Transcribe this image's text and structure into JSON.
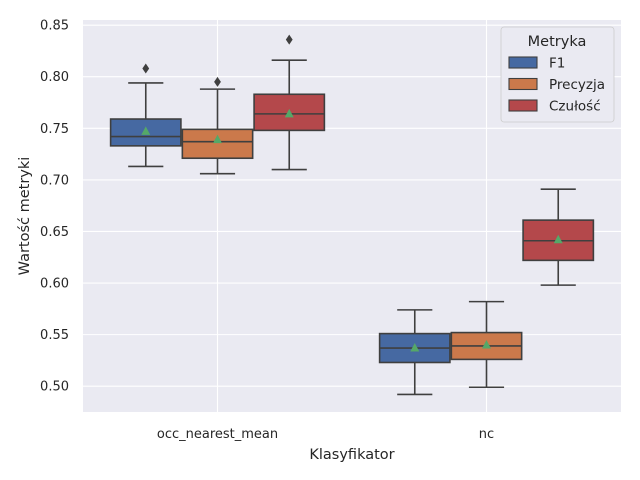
{
  "chart_data": {
    "type": "box",
    "xlabel": "Klasyfikator",
    "ylabel": "Wartość metryki",
    "ylim": [
      0.475,
      0.855
    ],
    "yticks": [
      "0.50",
      "0.55",
      "0.60",
      "0.65",
      "0.70",
      "0.75",
      "0.80",
      "0.85"
    ],
    "grid": true,
    "legend": {
      "title": "Metryka",
      "placement": "top-right"
    },
    "categories": [
      "occ_nearest_mean",
      "nc"
    ],
    "series": [
      {
        "name": "F1",
        "color": "#4c72b0",
        "boxes": [
          {
            "whisker_low": 0.713,
            "q1": 0.733,
            "median": 0.742,
            "q3": 0.759,
            "whisker_high": 0.794,
            "mean": 0.747,
            "outliers": [
              0.808
            ]
          },
          {
            "whisker_low": 0.492,
            "q1": 0.523,
            "median": 0.537,
            "q3": 0.551,
            "whisker_high": 0.574,
            "mean": 0.537,
            "outliers": []
          }
        ]
      },
      {
        "name": "Precyzja",
        "color": "#dd8452",
        "boxes": [
          {
            "whisker_low": 0.706,
            "q1": 0.721,
            "median": 0.737,
            "q3": 0.749,
            "whisker_high": 0.788,
            "mean": 0.739,
            "outliers": [
              0.795
            ]
          },
          {
            "whisker_low": 0.499,
            "q1": 0.526,
            "median": 0.539,
            "q3": 0.552,
            "whisker_high": 0.582,
            "mean": 0.54,
            "outliers": []
          }
        ]
      },
      {
        "name": "Czułość",
        "color": "#c44e52",
        "boxes": [
          {
            "whisker_low": 0.71,
            "q1": 0.748,
            "median": 0.764,
            "q3": 0.783,
            "whisker_high": 0.816,
            "mean": 0.764,
            "outliers": [
              0.836
            ]
          },
          {
            "whisker_low": 0.598,
            "q1": 0.622,
            "median": 0.641,
            "q3": 0.661,
            "whisker_high": 0.691,
            "mean": 0.642,
            "outliers": []
          }
        ]
      }
    ]
  }
}
